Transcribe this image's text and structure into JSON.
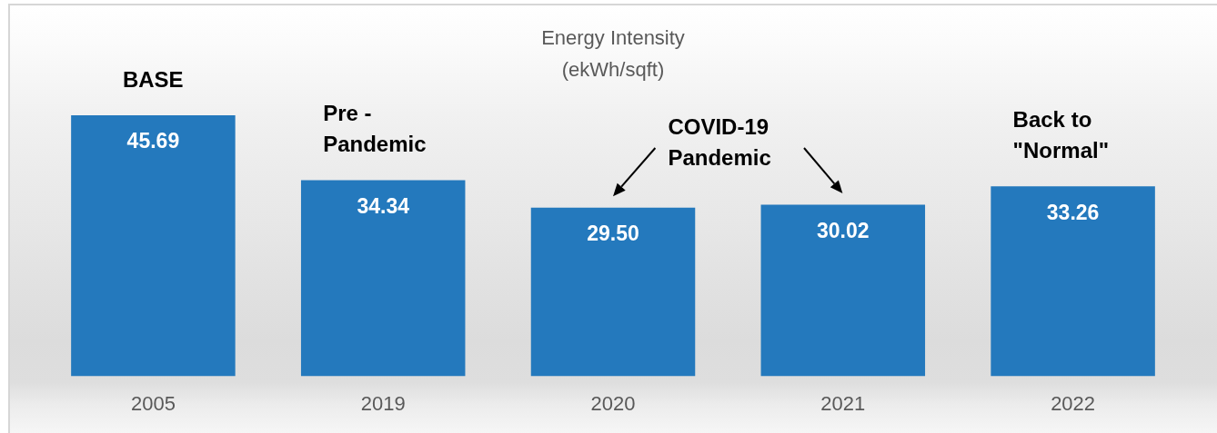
{
  "chart_data": {
    "type": "bar",
    "title": "Energy Intensity",
    "subtitle": "(ekWh/sqft)",
    "categories": [
      "2005",
      "2019",
      "2020",
      "2021",
      "2022"
    ],
    "values": [
      45.69,
      34.34,
      29.5,
      30.02,
      33.26
    ],
    "color": "#2479bd",
    "value_labels": [
      "45.69",
      "34.34",
      "29.50",
      "30.02",
      "33.26"
    ],
    "annotations": [
      "BASE",
      "Pre - Pandemic",
      "COVID-19 Pandemic",
      "Back to \"Normal\""
    ]
  }
}
